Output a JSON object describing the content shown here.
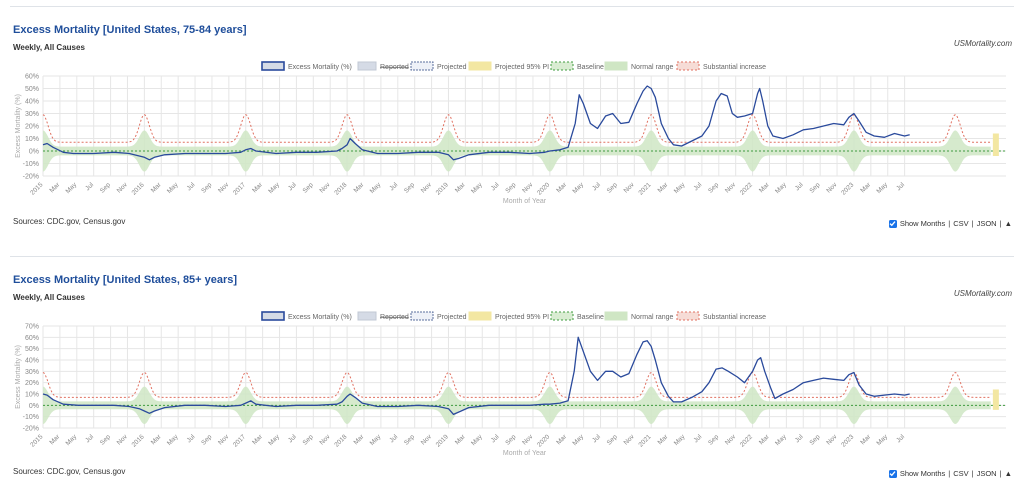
{
  "page": {
    "panels": [
      {
        "title": "Excess Mortality [United States, 75-84 years]",
        "subtitle": "Weekly, All Causes",
        "credit": "USMortality.com",
        "sources": "Sources: CDC.gov, Census.gov",
        "controls": {
          "show_months": "Show Months",
          "sep1": "|",
          "csv": "CSV",
          "sep2": "|",
          "json": "JSON",
          "sep3": "|",
          "collapse": "▲"
        }
      },
      {
        "title": "Excess Mortality [United States, 85+ years]",
        "subtitle": "Weekly, All Causes",
        "credit": "USMortality.com",
        "sources": "Sources: CDC.gov, Census.gov",
        "controls": {
          "show_months": "Show Months",
          "sep1": "|",
          "csv": "CSV",
          "sep2": "|",
          "json": "JSON",
          "sep3": "|",
          "collapse": "▲"
        }
      }
    ]
  },
  "colors": {
    "excess": "#2a4a9c",
    "reported_fill": "#d5dbe6",
    "projected_border": "#5b6f9e",
    "pi_fill": "#f3e7a2",
    "baseline": "#3f9b3f",
    "normal_fill": "#cfe6c4",
    "substantial": "#e07060",
    "grid": "#e6e6e6",
    "axis_text": "#888888"
  },
  "chart_data": [
    {
      "type": "line",
      "title": "",
      "xlabel": "Month of Year",
      "ylabel": "Excess Mortality (%)",
      "legend_position": "top",
      "legend": [
        "Excess Mortality (%)",
        "Reported",
        "Projected",
        "Projected 95% PI",
        "Baseline",
        "Normal range",
        "Substantial increase"
      ],
      "y_ticks": [
        "60%",
        "50%",
        "40%",
        "30%",
        "20%",
        "10%",
        "0%",
        "-10%",
        "-20%"
      ],
      "ylim": [
        -20,
        60
      ],
      "x_range": [
        2015.0,
        2024.5
      ],
      "x_ticks": [
        "2015",
        "Mar",
        "May",
        "Jul",
        "Sep",
        "Nov",
        "2016",
        "Mar",
        "May",
        "Jul",
        "Sep",
        "Nov",
        "2017",
        "Mar",
        "May",
        "Jul",
        "Sep",
        "Nov",
        "2018",
        "Mar",
        "May",
        "Jul",
        "Sep",
        "Nov",
        "2019",
        "Mar",
        "May",
        "Jul",
        "Sep",
        "Nov",
        "2020",
        "Mar",
        "May",
        "Jul",
        "Sep",
        "Nov",
        "2021",
        "Mar",
        "May",
        "Jul",
        "Sep",
        "Nov",
        "2022",
        "Mar",
        "May",
        "Jul",
        "Sep",
        "Nov",
        "2023",
        "Mar",
        "May",
        "Jul"
      ],
      "baseline": 0,
      "excess_series": [
        [
          2015.0,
          5
        ],
        [
          2015.04,
          6
        ],
        [
          2015.1,
          3
        ],
        [
          2015.2,
          -1
        ],
        [
          2015.3,
          -2
        ],
        [
          2015.5,
          -2
        ],
        [
          2015.7,
          -1
        ],
        [
          2015.85,
          -2
        ],
        [
          2015.95,
          -4
        ],
        [
          2016.0,
          -5
        ],
        [
          2016.05,
          -7
        ],
        [
          2016.1,
          -5
        ],
        [
          2016.2,
          -3
        ],
        [
          2016.4,
          -2
        ],
        [
          2016.6,
          -2
        ],
        [
          2016.8,
          -2
        ],
        [
          2016.95,
          -1
        ],
        [
          2017.0,
          1
        ],
        [
          2017.05,
          2
        ],
        [
          2017.1,
          0
        ],
        [
          2017.3,
          -2
        ],
        [
          2017.5,
          -1
        ],
        [
          2017.7,
          -1
        ],
        [
          2017.9,
          0
        ],
        [
          2017.95,
          2
        ],
        [
          2018.0,
          5
        ],
        [
          2018.03,
          10
        ],
        [
          2018.08,
          6
        ],
        [
          2018.15,
          1
        ],
        [
          2018.3,
          -2
        ],
        [
          2018.5,
          -2
        ],
        [
          2018.7,
          -1
        ],
        [
          2018.9,
          -1
        ],
        [
          2019.0,
          -3
        ],
        [
          2019.05,
          -7
        ],
        [
          2019.1,
          -6
        ],
        [
          2019.2,
          -3
        ],
        [
          2019.4,
          -1
        ],
        [
          2019.6,
          -1
        ],
        [
          2019.8,
          -2
        ],
        [
          2019.95,
          -1
        ],
        [
          2020.0,
          0
        ],
        [
          2020.1,
          1
        ],
        [
          2020.18,
          3
        ],
        [
          2020.25,
          22
        ],
        [
          2020.29,
          45
        ],
        [
          2020.33,
          38
        ],
        [
          2020.4,
          22
        ],
        [
          2020.47,
          18
        ],
        [
          2020.55,
          28
        ],
        [
          2020.62,
          30
        ],
        [
          2020.7,
          22
        ],
        [
          2020.78,
          23
        ],
        [
          2020.86,
          38
        ],
        [
          2020.92,
          48
        ],
        [
          2020.96,
          52
        ],
        [
          2021.0,
          50
        ],
        [
          2021.04,
          43
        ],
        [
          2021.1,
          22
        ],
        [
          2021.17,
          10
        ],
        [
          2021.22,
          5
        ],
        [
          2021.3,
          4
        ],
        [
          2021.4,
          8
        ],
        [
          2021.5,
          12
        ],
        [
          2021.57,
          20
        ],
        [
          2021.64,
          40
        ],
        [
          2021.69,
          46
        ],
        [
          2021.75,
          44
        ],
        [
          2021.8,
          30
        ],
        [
          2021.85,
          27
        ],
        [
          2021.92,
          28
        ],
        [
          2022.0,
          30
        ],
        [
          2022.05,
          46
        ],
        [
          2022.07,
          50
        ],
        [
          2022.1,
          40
        ],
        [
          2022.15,
          20
        ],
        [
          2022.2,
          12
        ],
        [
          2022.3,
          10
        ],
        [
          2022.4,
          13
        ],
        [
          2022.5,
          17
        ],
        [
          2022.6,
          18
        ],
        [
          2022.7,
          20
        ],
        [
          2022.8,
          22
        ],
        [
          2022.9,
          21
        ],
        [
          2022.95,
          27
        ],
        [
          2023.0,
          30
        ],
        [
          2023.05,
          24
        ],
        [
          2023.12,
          15
        ],
        [
          2023.2,
          12
        ],
        [
          2023.3,
          11
        ],
        [
          2023.4,
          14
        ],
        [
          2023.5,
          12
        ],
        [
          2023.55,
          13
        ]
      ]
    },
    {
      "type": "line",
      "title": "",
      "xlabel": "Month of Year",
      "ylabel": "Excess Mortality (%)",
      "legend_position": "top",
      "legend": [
        "Excess Mortality (%)",
        "Reported",
        "Projected",
        "Projected 95% PI",
        "Baseline",
        "Normal range",
        "Substantial increase"
      ],
      "y_ticks": [
        "70%",
        "60%",
        "50%",
        "40%",
        "30%",
        "20%",
        "10%",
        "0%",
        "-10%",
        "-20%"
      ],
      "ylim": [
        -20,
        70
      ],
      "x_range": [
        2015.0,
        2024.5
      ],
      "x_ticks": [
        "2015",
        "Mar",
        "May",
        "Jul",
        "Sep",
        "Nov",
        "2016",
        "Mar",
        "May",
        "Jul",
        "Sep",
        "Nov",
        "2017",
        "Mar",
        "May",
        "Jul",
        "Sep",
        "Nov",
        "2018",
        "Mar",
        "May",
        "Jul",
        "Sep",
        "Nov",
        "2019",
        "Mar",
        "May",
        "Jul",
        "Sep",
        "Nov",
        "2020",
        "Mar",
        "May",
        "Jul",
        "Sep",
        "Nov",
        "2021",
        "Mar",
        "May",
        "Jul",
        "Sep",
        "Nov",
        "2022",
        "Mar",
        "May",
        "Jul",
        "Sep",
        "Nov",
        "2023",
        "Mar",
        "May",
        "Jul"
      ],
      "baseline": 0,
      "excess_series": [
        [
          2015.0,
          10
        ],
        [
          2015.04,
          9
        ],
        [
          2015.1,
          5
        ],
        [
          2015.2,
          1
        ],
        [
          2015.35,
          0
        ],
        [
          2015.5,
          0
        ],
        [
          2015.7,
          0
        ],
        [
          2015.85,
          -1
        ],
        [
          2015.95,
          -3
        ],
        [
          2016.0,
          -5
        ],
        [
          2016.05,
          -7
        ],
        [
          2016.1,
          -5
        ],
        [
          2016.2,
          -2
        ],
        [
          2016.4,
          0
        ],
        [
          2016.6,
          0
        ],
        [
          2016.8,
          -1
        ],
        [
          2016.95,
          0
        ],
        [
          2017.0,
          2
        ],
        [
          2017.05,
          4
        ],
        [
          2017.1,
          1
        ],
        [
          2017.3,
          -1
        ],
        [
          2017.5,
          0
        ],
        [
          2017.7,
          0
        ],
        [
          2017.9,
          1
        ],
        [
          2017.95,
          3
        ],
        [
          2018.0,
          8
        ],
        [
          2018.03,
          10
        ],
        [
          2018.08,
          7
        ],
        [
          2018.15,
          2
        ],
        [
          2018.3,
          -1
        ],
        [
          2018.5,
          -1
        ],
        [
          2018.7,
          0
        ],
        [
          2018.9,
          -1
        ],
        [
          2019.0,
          -3
        ],
        [
          2019.05,
          -8
        ],
        [
          2019.1,
          -6
        ],
        [
          2019.2,
          -2
        ],
        [
          2019.4,
          0
        ],
        [
          2019.6,
          0
        ],
        [
          2019.8,
          0
        ],
        [
          2019.95,
          1
        ],
        [
          2020.0,
          1
        ],
        [
          2020.1,
          2
        ],
        [
          2020.18,
          4
        ],
        [
          2020.24,
          30
        ],
        [
          2020.28,
          60
        ],
        [
          2020.32,
          50
        ],
        [
          2020.4,
          30
        ],
        [
          2020.47,
          22
        ],
        [
          2020.55,
          30
        ],
        [
          2020.62,
          30
        ],
        [
          2020.7,
          25
        ],
        [
          2020.78,
          28
        ],
        [
          2020.86,
          45
        ],
        [
          2020.92,
          56
        ],
        [
          2020.96,
          57
        ],
        [
          2021.0,
          52
        ],
        [
          2021.04,
          40
        ],
        [
          2021.1,
          20
        ],
        [
          2021.17,
          8
        ],
        [
          2021.22,
          3
        ],
        [
          2021.3,
          3
        ],
        [
          2021.4,
          7
        ],
        [
          2021.5,
          12
        ],
        [
          2021.57,
          20
        ],
        [
          2021.64,
          32
        ],
        [
          2021.7,
          33
        ],
        [
          2021.76,
          30
        ],
        [
          2021.85,
          25
        ],
        [
          2021.92,
          20
        ],
        [
          2022.0,
          30
        ],
        [
          2022.05,
          40
        ],
        [
          2022.08,
          42
        ],
        [
          2022.12,
          30
        ],
        [
          2022.18,
          15
        ],
        [
          2022.22,
          6
        ],
        [
          2022.3,
          10
        ],
        [
          2022.4,
          14
        ],
        [
          2022.5,
          20
        ],
        [
          2022.6,
          22
        ],
        [
          2022.7,
          24
        ],
        [
          2022.8,
          23
        ],
        [
          2022.9,
          22
        ],
        [
          2022.95,
          27
        ],
        [
          2023.0,
          29
        ],
        [
          2023.05,
          18
        ],
        [
          2023.12,
          10
        ],
        [
          2023.2,
          8
        ],
        [
          2023.3,
          9
        ],
        [
          2023.4,
          10
        ],
        [
          2023.5,
          9
        ],
        [
          2023.55,
          10
        ]
      ]
    }
  ]
}
